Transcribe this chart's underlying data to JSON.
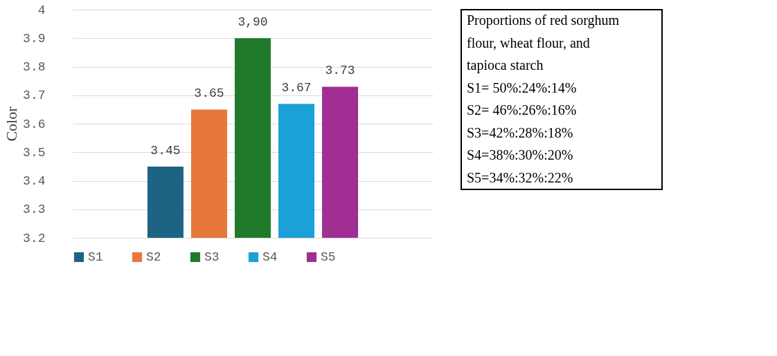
{
  "chart_data": {
    "type": "bar",
    "ylabel": "Color",
    "categories": [
      null
    ],
    "series": [
      {
        "name": "S1",
        "color": "#1d6383",
        "values": [
          3.45
        ]
      },
      {
        "name": "S2",
        "color": "#e8773a",
        "values": [
          3.65
        ]
      },
      {
        "name": "S3",
        "color": "#217a2c",
        "values": [
          3.9
        ]
      },
      {
        "name": "S4",
        "color": "#1ca0d8",
        "values": [
          3.67
        ]
      },
      {
        "name": "S5",
        "color": "#a02e93",
        "values": [
          3.73
        ]
      }
    ],
    "value_labels": [
      "3.45",
      "3.65",
      "3,90",
      "3.67",
      "3.73"
    ],
    "ylim": [
      3.2,
      4
    ],
    "yticks": [
      3.2,
      3.3,
      3.4,
      3.5,
      3.6,
      3.7,
      3.8,
      3.9,
      4
    ],
    "grid": "y",
    "legend": "bottom",
    "annotations": [
      "Proportions of red sorghum flour, wheat flour, and tapioca starch",
      "S1= 50%:24%:14%",
      "S2= 46%:26%:16%",
      "S3=42%:28%:18%",
      "S4=38%:30%:20%",
      "S5=34%:32%:22%"
    ]
  }
}
